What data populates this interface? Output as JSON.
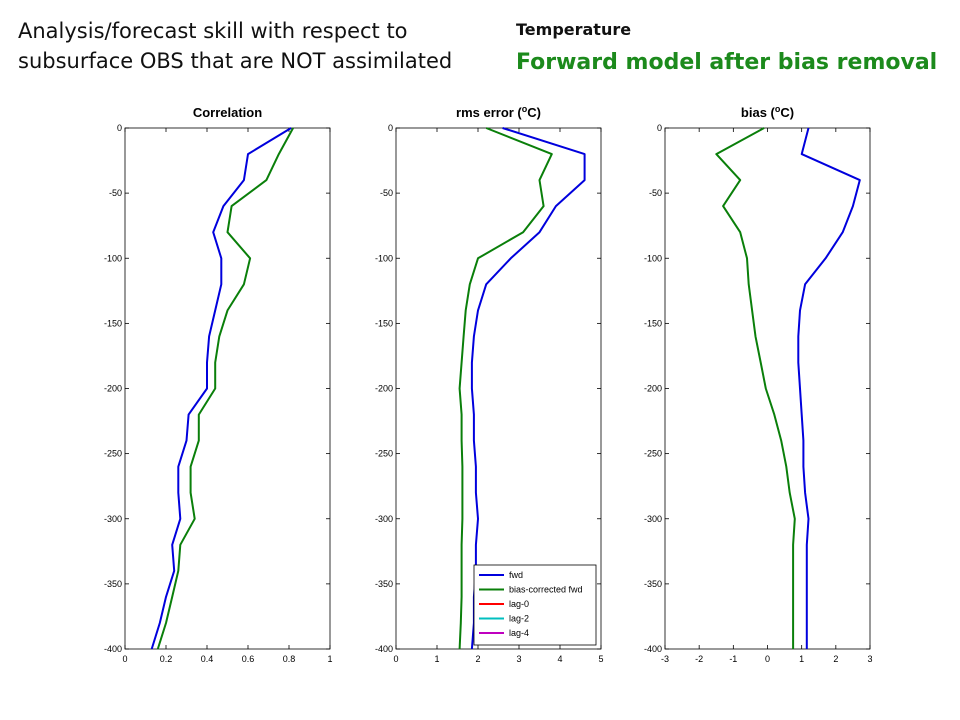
{
  "headline": "Analysis/forecast skill with respect to subsurface OBS that are NOT assimilated",
  "variable_label": "Temperature",
  "subtitle": "Forward model after bias removal",
  "subtitle_color": "#1c8a1c",
  "colors": {
    "fwd": "#0000dd",
    "bias-corrected fwd": "#0a7f0a",
    "lag-0": "#ff0000",
    "lag-2": "#00bfbf",
    "lag-4": "#bf00bf"
  },
  "legend": {
    "entries": [
      "fwd",
      "bias-corrected fwd",
      "lag-0",
      "lag-2",
      "lag-4"
    ],
    "placement": "bottom-right of panel 2"
  },
  "chart_data": [
    {
      "type": "line",
      "title": "Correlation",
      "xlim": [
        0,
        1
      ],
      "ylim": [
        -400,
        0
      ],
      "xticks": [
        "0",
        "0.2",
        "0.4",
        "0.6",
        "0.8",
        "1"
      ],
      "xtick_values": [
        0,
        0.2,
        0.4,
        0.6,
        0.8,
        1
      ],
      "yticks": [
        "0",
        "-50",
        "-100",
        "-150",
        "-200",
        "-250",
        "-300",
        "-350",
        "-400"
      ],
      "ytick_values": [
        0,
        -50,
        -100,
        -150,
        -200,
        -250,
        -300,
        -350,
        -400
      ],
      "series": [
        {
          "name": "fwd",
          "points": [
            [
              0.81,
              0
            ],
            [
              0.6,
              -20
            ],
            [
              0.58,
              -40
            ],
            [
              0.48,
              -60
            ],
            [
              0.43,
              -80
            ],
            [
              0.47,
              -100
            ],
            [
              0.47,
              -120
            ],
            [
              0.44,
              -140
            ],
            [
              0.41,
              -160
            ],
            [
              0.4,
              -180
            ],
            [
              0.4,
              -200
            ],
            [
              0.31,
              -220
            ],
            [
              0.3,
              -240
            ],
            [
              0.26,
              -260
            ],
            [
              0.26,
              -280
            ],
            [
              0.27,
              -300
            ],
            [
              0.23,
              -320
            ],
            [
              0.24,
              -340
            ],
            [
              0.2,
              -360
            ],
            [
              0.17,
              -380
            ],
            [
              0.13,
              -400
            ]
          ]
        },
        {
          "name": "bias-corrected fwd",
          "points": [
            [
              0.82,
              0
            ],
            [
              0.75,
              -20
            ],
            [
              0.69,
              -40
            ],
            [
              0.52,
              -60
            ],
            [
              0.5,
              -80
            ],
            [
              0.61,
              -100
            ],
            [
              0.58,
              -120
            ],
            [
              0.5,
              -140
            ],
            [
              0.46,
              -160
            ],
            [
              0.44,
              -180
            ],
            [
              0.44,
              -200
            ],
            [
              0.36,
              -220
            ],
            [
              0.36,
              -240
            ],
            [
              0.32,
              -260
            ],
            [
              0.32,
              -280
            ],
            [
              0.34,
              -300
            ],
            [
              0.27,
              -320
            ],
            [
              0.26,
              -340
            ],
            [
              0.23,
              -360
            ],
            [
              0.2,
              -380
            ],
            [
              0.16,
              -400
            ]
          ]
        }
      ]
    },
    {
      "type": "line",
      "title": "rms error (oC)",
      "title_parts": [
        "rms error (",
        "o",
        "C)"
      ],
      "xlim": [
        0,
        5
      ],
      "ylim": [
        -400,
        0
      ],
      "xticks": [
        "0",
        "1",
        "2",
        "3",
        "4",
        "5"
      ],
      "xtick_values": [
        0,
        1,
        2,
        3,
        4,
        5
      ],
      "yticks": [
        "0",
        "-50",
        "-100",
        "-150",
        "-200",
        "-250",
        "-300",
        "-350",
        "-400"
      ],
      "ytick_values": [
        0,
        -50,
        -100,
        -150,
        -200,
        -250,
        -300,
        -350,
        -400
      ],
      "series": [
        {
          "name": "fwd",
          "points": [
            [
              2.6,
              0
            ],
            [
              4.6,
              -20
            ],
            [
              4.6,
              -40
            ],
            [
              3.9,
              -60
            ],
            [
              3.5,
              -80
            ],
            [
              2.8,
              -100
            ],
            [
              2.2,
              -120
            ],
            [
              2.0,
              -140
            ],
            [
              1.9,
              -160
            ],
            [
              1.85,
              -180
            ],
            [
              1.85,
              -200
            ],
            [
              1.9,
              -220
            ],
            [
              1.9,
              -240
            ],
            [
              1.95,
              -260
            ],
            [
              1.95,
              -280
            ],
            [
              2.0,
              -300
            ],
            [
              1.95,
              -320
            ],
            [
              1.95,
              -340
            ],
            [
              1.9,
              -360
            ],
            [
              1.9,
              -380
            ],
            [
              1.85,
              -400
            ]
          ]
        },
        {
          "name": "bias-corrected fwd",
          "points": [
            [
              2.2,
              0
            ],
            [
              3.8,
              -20
            ],
            [
              3.5,
              -40
            ],
            [
              3.6,
              -60
            ],
            [
              3.1,
              -80
            ],
            [
              2.0,
              -100
            ],
            [
              1.8,
              -120
            ],
            [
              1.7,
              -140
            ],
            [
              1.65,
              -160
            ],
            [
              1.6,
              -180
            ],
            [
              1.55,
              -200
            ],
            [
              1.6,
              -220
            ],
            [
              1.6,
              -240
            ],
            [
              1.62,
              -260
            ],
            [
              1.62,
              -280
            ],
            [
              1.62,
              -300
            ],
            [
              1.6,
              -320
            ],
            [
              1.6,
              -340
            ],
            [
              1.6,
              -360
            ],
            [
              1.58,
              -380
            ],
            [
              1.55,
              -400
            ]
          ]
        }
      ]
    },
    {
      "type": "line",
      "title": "bias (oC)",
      "title_parts": [
        "bias (",
        "o",
        "C)"
      ],
      "xlim": [
        -3,
        3
      ],
      "ylim": [
        -400,
        0
      ],
      "xticks": [
        "-3",
        "-2",
        "-1",
        "0",
        "1",
        "2",
        "3"
      ],
      "xtick_values": [
        -3,
        -2,
        -1,
        0,
        1,
        2,
        3
      ],
      "yticks": [
        "0",
        "-50",
        "-100",
        "-150",
        "-200",
        "-250",
        "-300",
        "-350",
        "-400"
      ],
      "ytick_values": [
        0,
        -50,
        -100,
        -150,
        -200,
        -250,
        -300,
        -350,
        -400
      ],
      "series": [
        {
          "name": "fwd",
          "points": [
            [
              1.2,
              0
            ],
            [
              1.0,
              -20
            ],
            [
              2.7,
              -40
            ],
            [
              2.5,
              -60
            ],
            [
              2.2,
              -80
            ],
            [
              1.7,
              -100
            ],
            [
              1.1,
              -120
            ],
            [
              0.95,
              -140
            ],
            [
              0.9,
              -160
            ],
            [
              0.9,
              -180
            ],
            [
              0.95,
              -200
            ],
            [
              1.0,
              -220
            ],
            [
              1.05,
              -240
            ],
            [
              1.05,
              -260
            ],
            [
              1.1,
              -280
            ],
            [
              1.2,
              -300
            ],
            [
              1.15,
              -320
            ],
            [
              1.15,
              -340
            ],
            [
              1.15,
              -360
            ],
            [
              1.15,
              -380
            ],
            [
              1.15,
              -400
            ]
          ]
        },
        {
          "name": "bias-corrected fwd",
          "points": [
            [
              -0.1,
              0
            ],
            [
              -1.5,
              -20
            ],
            [
              -0.8,
              -40
            ],
            [
              -1.3,
              -60
            ],
            [
              -0.8,
              -80
            ],
            [
              -0.6,
              -100
            ],
            [
              -0.55,
              -120
            ],
            [
              -0.45,
              -140
            ],
            [
              -0.35,
              -160
            ],
            [
              -0.2,
              -180
            ],
            [
              -0.05,
              -200
            ],
            [
              0.2,
              -220
            ],
            [
              0.4,
              -240
            ],
            [
              0.55,
              -260
            ],
            [
              0.65,
              -280
            ],
            [
              0.8,
              -300
            ],
            [
              0.75,
              -320
            ],
            [
              0.75,
              -340
            ],
            [
              0.75,
              -360
            ],
            [
              0.75,
              -380
            ],
            [
              0.75,
              -400
            ]
          ]
        }
      ]
    }
  ]
}
